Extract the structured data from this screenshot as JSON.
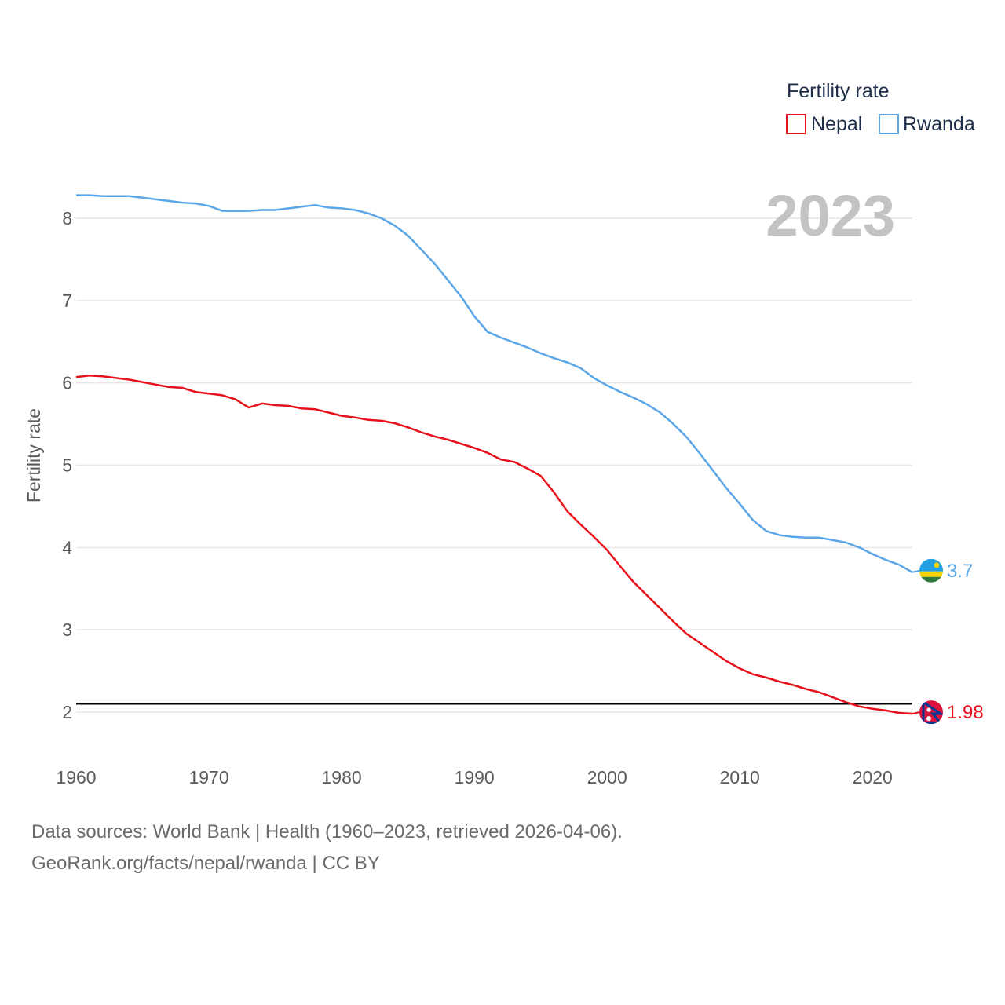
{
  "chart_data": {
    "type": "line",
    "ylabel": "Fertility rate",
    "xlabel": "",
    "ylim": [
      1.5,
      8.5
    ],
    "xlim": [
      1960,
      2023
    ],
    "yticks": [
      2,
      3,
      4,
      5,
      6,
      7,
      8
    ],
    "xticks": [
      1960,
      1970,
      1980,
      1990,
      2000,
      2010,
      2020
    ],
    "grid": true,
    "legend_title": "Fertility rate",
    "legend_position": "top-right",
    "year_label": "2023",
    "reference_line": 2.1,
    "x": [
      1960,
      1961,
      1962,
      1963,
      1964,
      1965,
      1966,
      1967,
      1968,
      1969,
      1970,
      1971,
      1972,
      1973,
      1974,
      1975,
      1976,
      1977,
      1978,
      1979,
      1980,
      1981,
      1982,
      1983,
      1984,
      1985,
      1986,
      1987,
      1988,
      1989,
      1990,
      1991,
      1992,
      1993,
      1994,
      1995,
      1996,
      1997,
      1998,
      1999,
      2000,
      2001,
      2002,
      2003,
      2004,
      2005,
      2006,
      2007,
      2008,
      2009,
      2010,
      2011,
      2012,
      2013,
      2014,
      2015,
      2016,
      2017,
      2018,
      2019,
      2020,
      2021,
      2022,
      2023
    ],
    "series": [
      {
        "name": "Nepal",
        "color": "#e8101a",
        "end_label": "1.98",
        "values": [
          6.07,
          6.09,
          6.08,
          6.06,
          6.04,
          6.01,
          5.98,
          5.95,
          5.94,
          5.89,
          5.87,
          5.85,
          5.8,
          5.7,
          5.75,
          5.73,
          5.72,
          5.69,
          5.68,
          5.64,
          5.6,
          5.58,
          5.55,
          5.54,
          5.51,
          5.46,
          5.4,
          5.35,
          5.31,
          5.26,
          5.21,
          5.15,
          5.07,
          5.04,
          4.96,
          4.87,
          4.67,
          4.44,
          4.28,
          4.13,
          3.97,
          3.77,
          3.58,
          3.42,
          3.26,
          3.1,
          2.95,
          2.84,
          2.73,
          2.62,
          2.53,
          2.46,
          2.42,
          2.37,
          2.33,
          2.28,
          2.24,
          2.18,
          2.12,
          2.07,
          2.04,
          2.02,
          1.99,
          1.98
        ]
      },
      {
        "name": "Rwanda",
        "color": "#5aa6e8",
        "end_label": "3.7",
        "values": [
          8.28,
          8.28,
          8.27,
          8.27,
          8.27,
          8.25,
          8.23,
          8.21,
          8.19,
          8.18,
          8.15,
          8.09,
          8.09,
          8.09,
          8.1,
          8.1,
          8.12,
          8.14,
          8.16,
          8.13,
          8.12,
          8.1,
          8.06,
          8.0,
          7.91,
          7.79,
          7.62,
          7.45,
          7.25,
          7.05,
          6.81,
          6.62,
          6.55,
          6.49,
          6.43,
          6.36,
          6.3,
          6.25,
          6.18,
          6.06,
          5.97,
          5.89,
          5.82,
          5.74,
          5.64,
          5.5,
          5.34,
          5.14,
          4.93,
          4.72,
          4.53,
          4.33,
          4.2,
          4.15,
          4.13,
          4.12,
          4.12,
          4.09,
          4.06,
          4.0,
          3.92,
          3.85,
          3.79,
          3.7
        ]
      }
    ]
  },
  "footer": {
    "line1": "Data sources: World Bank | Health (1960–2023, retrieved 2026-04-06).",
    "line2": "GeoRank.org/facts/nepal/rwanda | CC BY"
  },
  "colors": {
    "nepal": "#e8101a",
    "rwanda": "#5aa6e8",
    "grid": "#e6e6e6",
    "reference": "#000000"
  },
  "icons": {
    "nepal_marker": "nepal-flag-icon",
    "rwanda_marker": "rwanda-flag-icon"
  }
}
